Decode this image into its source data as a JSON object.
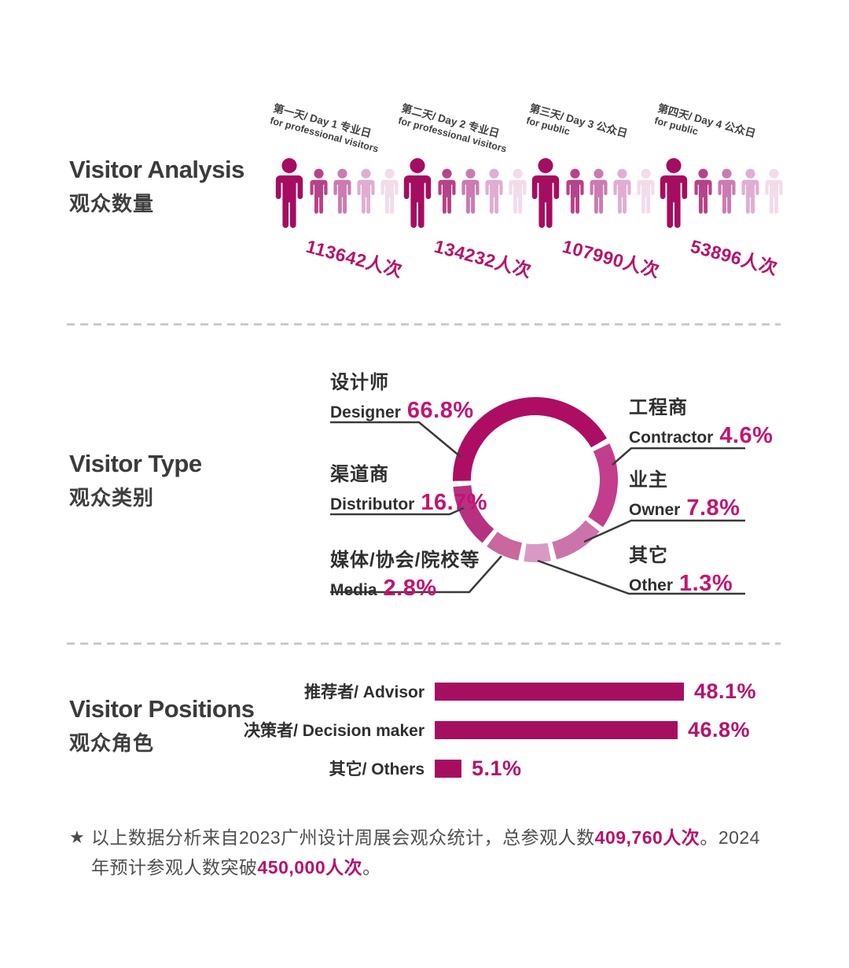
{
  "palette": {
    "accent": "#b5126c",
    "bar_color": "#a60f60",
    "leader_line": "#3a3a3a",
    "figure_shades": [
      "#a50d60",
      "#b84289",
      "#cc7bb1",
      "#e0aed2",
      "#f2dcea"
    ]
  },
  "sections": {
    "analysis": {
      "title_en": "Visitor Analysis",
      "title_zh": "观众数量",
      "days": [
        {
          "label_line1": "第一天/ Day 1 专业日",
          "label_line2": "for professional visitors",
          "count": "113642人次"
        },
        {
          "label_line1": "第二天/ Day 2 专业日",
          "label_line2": "for professional visitors",
          "count": "134232人次"
        },
        {
          "label_line1": "第三天/ Day 3 公众日",
          "label_line2": "for public",
          "count": "107990人次"
        },
        {
          "label_line1": "第四天/ Day 4 公众日",
          "label_line2": "for public",
          "count": "53896人次"
        }
      ]
    },
    "type": {
      "title_en": "Visitor Type",
      "title_zh": "观众类别",
      "segments": [
        {
          "id": "designer",
          "zh": "设计师",
          "en": "Designer",
          "pct": "66.8%",
          "value": 66.8,
          "color": "#ad0e63"
        },
        {
          "id": "distributor",
          "zh": "渠道商",
          "en": "Distributor",
          "pct": "16.7%",
          "value": 16.7,
          "color": "#b73181"
        },
        {
          "id": "media",
          "zh": "媒体/协会/院校等",
          "en": "Media",
          "pct": "2.8%",
          "value": 2.8,
          "color": "#c9679f"
        },
        {
          "id": "contractor",
          "zh": "工程商",
          "en": "Contractor",
          "pct": "4.6%",
          "value": 4.6,
          "color": "#c23e8d"
        },
        {
          "id": "owner",
          "zh": "业主",
          "en": "Owner",
          "pct": "7.8%",
          "value": 7.8,
          "color": "#cb74ab"
        },
        {
          "id": "other",
          "zh": "其它",
          "en": "Other",
          "pct": "1.3%",
          "value": 1.3,
          "color": "#d89ac5"
        }
      ]
    },
    "positions": {
      "title_en": "Visitor Positions",
      "title_zh": "观众角色",
      "bars": [
        {
          "label": "推荐者/ Advisor",
          "pct": "48.1%",
          "value": 48.1
        },
        {
          "label": "决策者/ Decision maker",
          "pct": "46.8%",
          "value": 46.8
        },
        {
          "label": "其它/ Others",
          "pct": "5.1%",
          "value": 5.1
        }
      ]
    },
    "footnote": {
      "star": "★",
      "segments": [
        {
          "text": "以上数据分析来自2023广州设计周展会观众统计，总参观人数"
        },
        {
          "text": "409,760人次"
        },
        {
          "text": "。2024年预计参观人数突破"
        },
        {
          "text": "450,000人次"
        },
        {
          "text": "。"
        }
      ]
    }
  },
  "chart_data": [
    {
      "type": "bar",
      "title": "Visitor Analysis 观众数量",
      "categories": [
        "第一天/ Day 1 专业日 for professional visitors",
        "第二天/ Day 2 专业日 for professional visitors",
        "第三天/ Day 3 公众日 for public",
        "第四天/ Day 4 公众日 for public"
      ],
      "values": [
        113642,
        134232,
        107990,
        53896
      ],
      "unit": "人次"
    },
    {
      "type": "pie",
      "title": "Visitor Type 观众类别",
      "labels": [
        "设计师 Designer",
        "渠道商 Distributor",
        "媒体/协会/院校等 Media",
        "工程商 Contractor",
        "业主 Owner",
        "其它 Other"
      ],
      "values": [
        66.8,
        16.7,
        2.8,
        4.6,
        7.8,
        1.3
      ],
      "unit": "%"
    },
    {
      "type": "bar",
      "title": "Visitor Positions 观众角色",
      "categories": [
        "推荐者/ Advisor",
        "决策者/ Decision maker",
        "其它/ Others"
      ],
      "values": [
        48.1,
        46.8,
        5.1
      ],
      "unit": "%",
      "xlim": [
        0,
        50
      ]
    }
  ]
}
